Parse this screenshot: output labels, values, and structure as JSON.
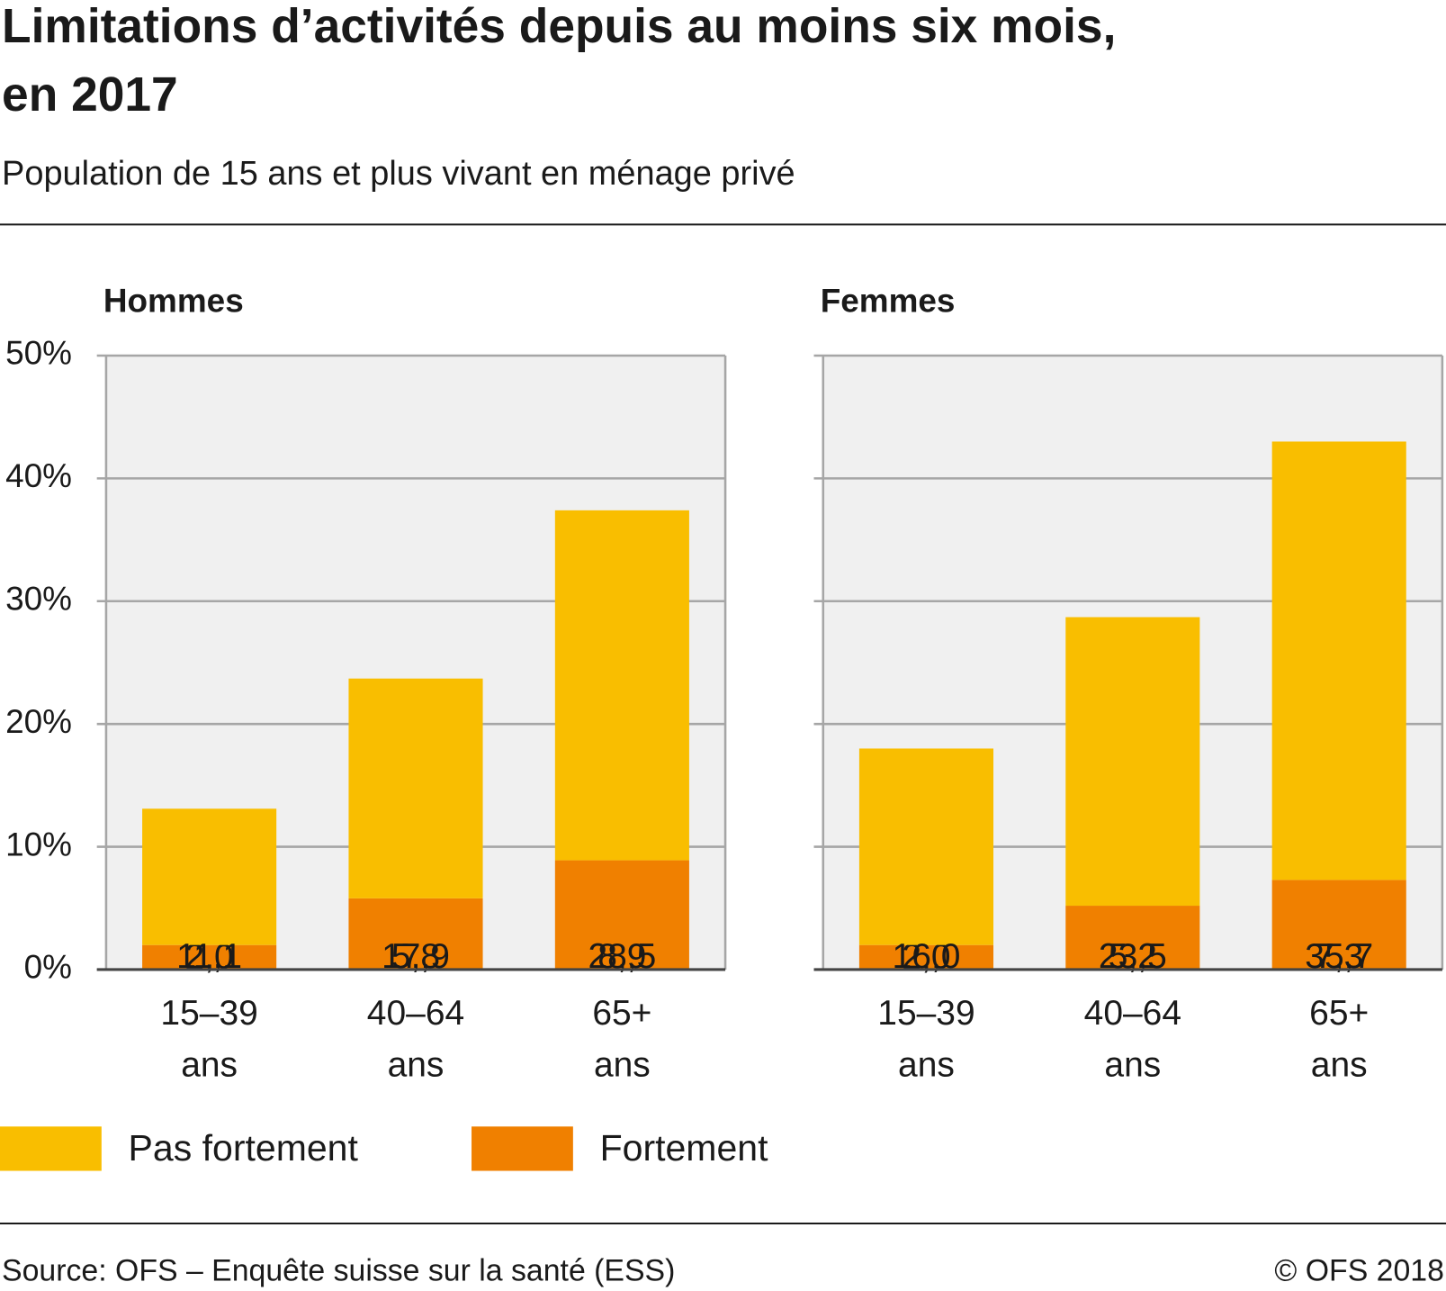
{
  "title": "Limitations d’activités depuis au moins six mois, en 2017",
  "subtitle": "Population de 15 ans et plus vivant en ménage privé",
  "source": "Source: OFS – Enquête suisse sur la santé (ESS)",
  "copyright": "© OFS 2018",
  "chart_data": [
    {
      "type": "bar",
      "stacked": true,
      "title": "Hommes",
      "categories": [
        "15–39 ans",
        "40–64 ans",
        "65+ ans"
      ],
      "series": [
        {
          "name": "Pas fortement",
          "color": "#f9be00",
          "values": [
            11.1,
            17.9,
            28.5
          ],
          "value_labels": [
            "11,1",
            "17,9",
            "28,5"
          ]
        },
        {
          "name": "Fortement",
          "color": "#f08000",
          "values": [
            2.0,
            5.8,
            8.9
          ],
          "value_labels": [
            "2,0",
            "5,8",
            "8,9"
          ]
        }
      ],
      "ylim": [
        0,
        50
      ],
      "yticks": [
        {
          "value": 0,
          "label": "0%"
        },
        {
          "value": 10,
          "label": "10%"
        },
        {
          "value": 20,
          "label": "20%"
        },
        {
          "value": 30,
          "label": "30%"
        },
        {
          "value": 40,
          "label": "40%"
        },
        {
          "value": 50,
          "label": "50%"
        }
      ],
      "grid": true
    },
    {
      "type": "bar",
      "stacked": true,
      "title": "Femmes",
      "categories": [
        "15–39 ans",
        "40–64 ans",
        "65+ ans"
      ],
      "series": [
        {
          "name": "Pas fortement",
          "color": "#f9be00",
          "values": [
            16.0,
            23.5,
            35.7
          ],
          "value_labels": [
            "16,0",
            "23,5",
            "35,7"
          ]
        },
        {
          "name": "Fortement",
          "color": "#f08000",
          "values": [
            2.0,
            5.2,
            7.3
          ],
          "value_labels": [
            "2,0",
            "5,2",
            "7,3"
          ]
        }
      ],
      "ylim": [
        0,
        50
      ],
      "yticks": [
        0,
        10,
        20,
        30,
        40,
        50
      ],
      "grid": true
    }
  ]
}
